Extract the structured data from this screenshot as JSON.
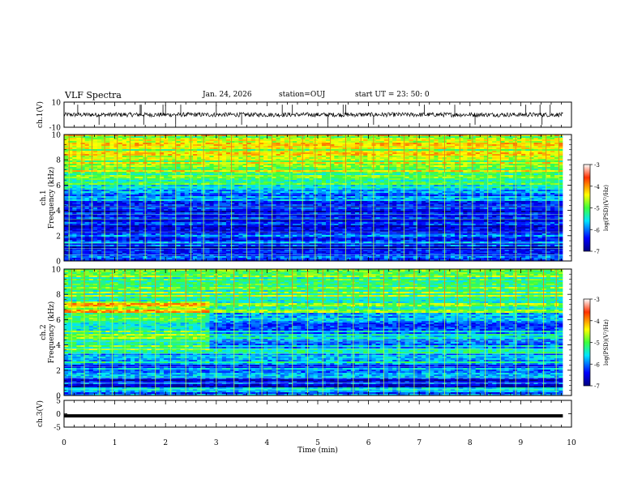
{
  "header": {
    "title": "VLF Spectra",
    "date": "Jan. 24, 2026",
    "station": "station=OUJ",
    "start": "start  UT =   23: 50: 0"
  },
  "chart_data": [
    {
      "type": "line",
      "panel": "waveform-ch1",
      "ylabel": "ch.1(V)",
      "ylim": [
        -10,
        10
      ],
      "yticks": [
        "10",
        "-10"
      ],
      "xlim": [
        0,
        10
      ],
      "trace_level": 0,
      "trace_noise": 0.8,
      "spike_times_min": [
        0.27,
        0.69,
        1.5,
        1.52,
        1.57,
        1.95,
        2.0,
        2.2,
        2.3,
        3.0,
        3.5,
        4.3,
        4.5,
        5.2,
        5.5,
        5.55,
        6.1,
        7.1,
        7.7,
        8.1,
        9.1,
        9.38,
        9.42,
        9.58
      ]
    },
    {
      "type": "heatmap",
      "panel": "spectrogram-ch1",
      "ylabel": "ch.1\nFrequency (kHz)",
      "ylabel_line1": "ch.1",
      "ylabel_line2": "Frequency (kHz)",
      "ylim": [
        0,
        10
      ],
      "yticks": [
        "0",
        "2",
        "4",
        "6",
        "8",
        "10"
      ],
      "xlim": [
        0,
        9.83
      ],
      "colorbar": {
        "label": "log(PSD)(V²/Hz)",
        "range": [
          -7,
          -3
        ],
        "ticks": [
          "-3",
          "-4",
          "-5",
          "-6",
          "-7"
        ]
      },
      "band_levels_khz": [
        [
          0,
          0.6,
          -6.2
        ],
        [
          0.6,
          1.2,
          -6.6
        ],
        [
          1.2,
          2.2,
          -6.2
        ],
        [
          2.2,
          3.0,
          -6.4
        ],
        [
          3.0,
          4.4,
          -6.5
        ],
        [
          4.4,
          5.6,
          -6.0
        ],
        [
          5.6,
          7.0,
          -5.2
        ],
        [
          7.0,
          10.0,
          -4.6
        ]
      ],
      "sferic_times_min": [
        0.1,
        0.35,
        0.55,
        0.8,
        1.05,
        1.3,
        1.6,
        1.9,
        2.2,
        2.5,
        2.75,
        3.05,
        3.3,
        3.6,
        3.85,
        4.1,
        4.45,
        4.7,
        4.95,
        5.25,
        5.55,
        5.85,
        6.1,
        6.4,
        6.7,
        6.95,
        7.2,
        7.5,
        7.8,
        8.05,
        8.35,
        8.6,
        8.9,
        9.2,
        9.5,
        9.75
      ]
    },
    {
      "type": "heatmap",
      "panel": "spectrogram-ch2",
      "ylabel": "ch.2\nFrequency (kHz)",
      "ylabel_line1": "ch.2",
      "ylabel_line2": "Frequency (kHz)",
      "ylim": [
        0,
        10
      ],
      "yticks": [
        "0",
        "2",
        "4",
        "6",
        "8",
        "10"
      ],
      "xlim": [
        0,
        9.83
      ],
      "colorbar": {
        "label": "log(PSD)(V²/Hz)",
        "range": [
          -7,
          -3
        ],
        "ticks": [
          "-3",
          "-4",
          "-5",
          "-6",
          "-7"
        ]
      },
      "band_levels_khz": [
        [
          0,
          0.6,
          -6.0
        ],
        [
          0.6,
          1.4,
          -6.4
        ],
        [
          1.4,
          2.4,
          -6.0
        ],
        [
          2.4,
          3.6,
          -5.6
        ],
        [
          3.6,
          6.5,
          -5.8
        ],
        [
          6.5,
          10.0,
          -5.0
        ]
      ],
      "regime_change_min": 2.9,
      "sferic_times_min": [
        0.15,
        0.4,
        0.7,
        0.95,
        1.2,
        1.5,
        1.8,
        2.1,
        2.4,
        2.7,
        3.0,
        3.35,
        3.65,
        3.9,
        4.2,
        4.5,
        4.8,
        5.1,
        5.4,
        5.7,
        6.0,
        6.3,
        6.6,
        6.9,
        7.2,
        7.5,
        7.75,
        8.0,
        8.3,
        8.6,
        8.9,
        9.15,
        9.45,
        9.7
      ]
    },
    {
      "type": "line",
      "panel": "waveform-ch3",
      "ylabel": "ch.3(V)",
      "ylim": [
        -5,
        5
      ],
      "yticks": [
        "5",
        "0",
        "-5"
      ],
      "xlim": [
        0,
        10
      ],
      "trace_level": -0.8,
      "xlabel": "Time (min)",
      "xticks": [
        "0",
        "1",
        "2",
        "3",
        "4",
        "5",
        "6",
        "7",
        "8",
        "9",
        "10"
      ]
    }
  ]
}
